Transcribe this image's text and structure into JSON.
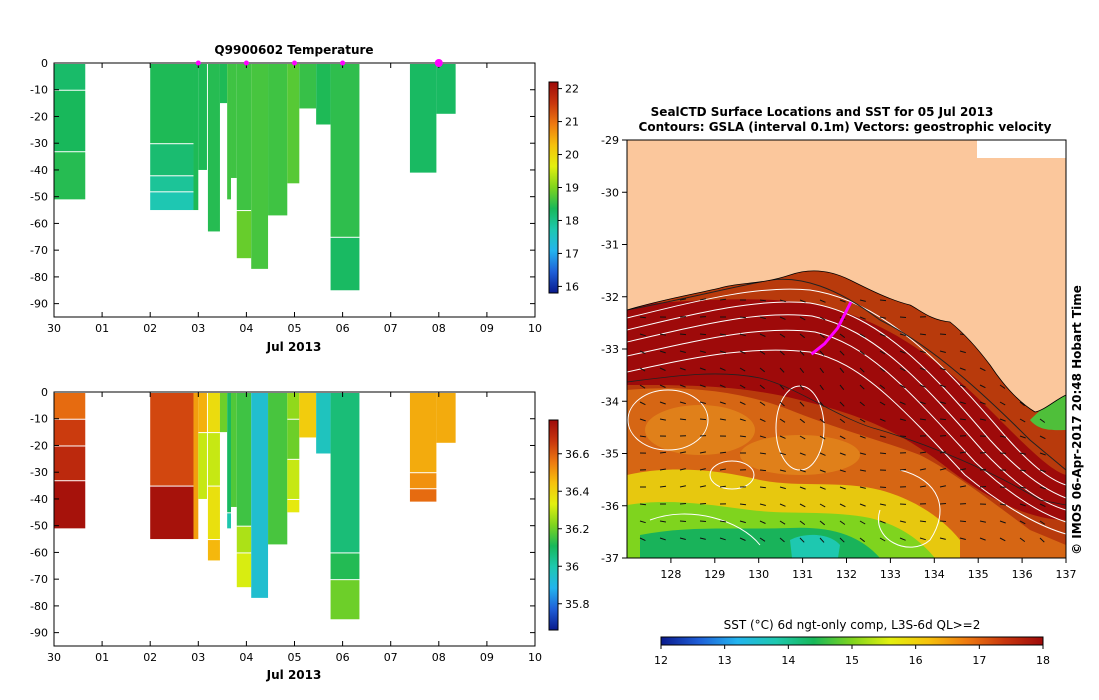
{
  "colors": {
    "temp_scale": [
      "#0a1a8c",
      "#1f5fd8",
      "#23b4ee",
      "#1ec8b0",
      "#18b85a",
      "#7fd41e",
      "#e3f00f",
      "#f6c20c",
      "#ee7a10",
      "#c8360e",
      "#9e0a0a"
    ],
    "land": "#fbc79c",
    "contour": "#ffffff",
    "track": "#ff00ff"
  },
  "chart_data": [
    {
      "id": "temperature-profile",
      "type": "heatmap",
      "title": "Q9900602  Temperature",
      "xlabel": "Jul 2013",
      "x_ticks": [
        "30",
        "01",
        "02",
        "03",
        "04",
        "05",
        "06",
        "07",
        "08",
        "09",
        "10"
      ],
      "xlim": [
        0,
        10
      ],
      "ylim": [
        -95,
        0
      ],
      "y_ticks": [
        0,
        -10,
        -20,
        -30,
        -40,
        -50,
        -60,
        -70,
        -80,
        -90
      ],
      "colorbar": {
        "min": 15.8,
        "max": 22.2,
        "ticks": [
          16,
          17,
          18,
          19,
          20,
          21,
          22
        ]
      },
      "profile_markers": [
        3.0,
        4.0,
        5.0,
        6.0,
        8.0
      ],
      "columns": [
        {
          "x0": 0.0,
          "x1": 0.65,
          "depth": 51,
          "bands": [
            [
              0,
              10,
              18.25
            ],
            [
              10,
              33,
              18.35
            ],
            [
              33,
              51,
              18.45
            ]
          ]
        },
        {
          "x0": 2.0,
          "x1": 2.9,
          "depth": 55,
          "bands": [
            [
              0,
              30,
              18.4
            ],
            [
              30,
              42,
              18.2
            ],
            [
              42,
              48,
              17.9
            ],
            [
              48,
              55,
              17.7
            ]
          ]
        },
        {
          "x0": 2.9,
          "x1": 3.0,
          "depth": 55,
          "bands": [
            [
              0,
              55,
              18.4
            ]
          ]
        },
        {
          "x0": 3.0,
          "x1": 3.18,
          "depth": 40,
          "bands": [
            [
              0,
              40,
              18.4
            ]
          ]
        },
        {
          "x0": 3.2,
          "x1": 3.45,
          "depth": 63,
          "bands": [
            [
              0,
              63,
              18.45
            ]
          ]
        },
        {
          "x0": 3.45,
          "x1": 3.6,
          "depth": 15,
          "bands": [
            [
              0,
              15,
              18.4
            ]
          ]
        },
        {
          "x0": 3.6,
          "x1": 3.68,
          "depth": 51,
          "bands": [
            [
              0,
              51,
              18.6
            ]
          ]
        },
        {
          "x0": 3.68,
          "x1": 3.8,
          "depth": 43,
          "bands": [
            [
              0,
              43,
              18.6
            ]
          ]
        },
        {
          "x0": 3.8,
          "x1": 4.1,
          "depth": 73,
          "bands": [
            [
              0,
              55,
              18.6
            ],
            [
              55,
              73,
              18.85
            ]
          ]
        },
        {
          "x0": 4.1,
          "x1": 4.45,
          "depth": 77,
          "bands": [
            [
              0,
              77,
              18.65
            ]
          ]
        },
        {
          "x0": 4.45,
          "x1": 4.85,
          "depth": 57,
          "bands": [
            [
              0,
              57,
              18.6
            ]
          ]
        },
        {
          "x0": 4.85,
          "x1": 5.1,
          "depth": 45,
          "bands": [
            [
              0,
              45,
              18.75
            ]
          ]
        },
        {
          "x0": 5.1,
          "x1": 5.45,
          "depth": 17,
          "bands": [
            [
              0,
              17,
              18.55
            ]
          ]
        },
        {
          "x0": 5.45,
          "x1": 5.75,
          "depth": 23,
          "bands": [
            [
              0,
              23,
              18.4
            ]
          ]
        },
        {
          "x0": 5.75,
          "x1": 6.35,
          "depth": 85,
          "bands": [
            [
              0,
              65,
              18.5
            ],
            [
              65,
              85,
              18.3
            ]
          ]
        },
        {
          "x0": 7.4,
          "x1": 7.95,
          "depth": 41,
          "bands": [
            [
              0,
              41,
              18.3
            ]
          ]
        },
        {
          "x0": 7.95,
          "x1": 8.35,
          "depth": 19,
          "bands": [
            [
              0,
              19,
              18.3
            ]
          ]
        }
      ]
    },
    {
      "id": "salinity-profile",
      "type": "heatmap",
      "title": "",
      "xlabel": "Jul 2013",
      "x_ticks": [
        "30",
        "01",
        "02",
        "03",
        "04",
        "05",
        "06",
        "07",
        "08",
        "09",
        "10"
      ],
      "xlim": [
        0,
        10
      ],
      "ylim": [
        -95,
        0
      ],
      "y_ticks": [
        0,
        -10,
        -20,
        -30,
        -40,
        -50,
        -60,
        -70,
        -80,
        -90
      ],
      "colorbar": {
        "min": 35.66,
        "max": 36.78,
        "ticks": [
          35.8,
          36,
          36.2,
          36.4,
          36.6
        ]
      },
      "columns": [
        {
          "x0": 0.0,
          "x1": 0.65,
          "depth": 51,
          "bands": [
            [
              0,
              10,
              36.58
            ],
            [
              10,
              20,
              36.66
            ],
            [
              20,
              33,
              36.7
            ],
            [
              33,
              51,
              36.76
            ]
          ]
        },
        {
          "x0": 2.0,
          "x1": 2.9,
          "depth": 55,
          "bands": [
            [
              0,
              35,
              36.64
            ],
            [
              35,
              55,
              36.76
            ]
          ]
        },
        {
          "x0": 2.9,
          "x1": 3.0,
          "depth": 55,
          "bands": [
            [
              0,
              55,
              36.5
            ]
          ]
        },
        {
          "x0": 3.0,
          "x1": 3.18,
          "depth": 40,
          "bands": [
            [
              0,
              15,
              36.47
            ],
            [
              15,
              40,
              36.3
            ]
          ]
        },
        {
          "x0": 3.2,
          "x1": 3.45,
          "depth": 63,
          "bands": [
            [
              0,
              15,
              36.38
            ],
            [
              15,
              35,
              36.3
            ],
            [
              35,
              55,
              36.37
            ],
            [
              55,
              63,
              36.46
            ]
          ]
        },
        {
          "x0": 3.45,
          "x1": 3.6,
          "depth": 15,
          "bands": [
            [
              0,
              15,
              36.2
            ]
          ]
        },
        {
          "x0": 3.6,
          "x1": 3.68,
          "depth": 51,
          "bands": [
            [
              0,
              45,
              36.1
            ],
            [
              45,
              51,
              36.0
            ]
          ]
        },
        {
          "x0": 3.68,
          "x1": 3.8,
          "depth": 43,
          "bands": [
            [
              0,
              43,
              36.17
            ]
          ]
        },
        {
          "x0": 3.8,
          "x1": 4.1,
          "depth": 73,
          "bands": [
            [
              0,
              50,
              36.15
            ],
            [
              50,
              60,
              36.27
            ],
            [
              60,
              73,
              36.32
            ]
          ]
        },
        {
          "x0": 4.1,
          "x1": 4.45,
          "depth": 77,
          "bands": [
            [
              0,
              77,
              35.94
            ]
          ]
        },
        {
          "x0": 4.45,
          "x1": 4.85,
          "depth": 57,
          "bands": [
            [
              0,
              57,
              36.16
            ]
          ]
        },
        {
          "x0": 4.85,
          "x1": 5.1,
          "depth": 45,
          "bands": [
            [
              0,
              10,
              36.24
            ],
            [
              10,
              25,
              36.2
            ],
            [
              25,
              40,
              36.3
            ],
            [
              40,
              45,
              36.35
            ]
          ]
        },
        {
          "x0": 5.1,
          "x1": 5.45,
          "depth": 17,
          "bands": [
            [
              0,
              17,
              36.42
            ]
          ]
        },
        {
          "x0": 5.45,
          "x1": 5.75,
          "depth": 23,
          "bands": [
            [
              0,
              23,
              35.97
            ]
          ]
        },
        {
          "x0": 5.75,
          "x1": 6.35,
          "depth": 85,
          "bands": [
            [
              0,
              60,
              36.07
            ],
            [
              60,
              70,
              36.12
            ],
            [
              70,
              85,
              36.2
            ]
          ]
        },
        {
          "x0": 7.4,
          "x1": 7.95,
          "depth": 41,
          "bands": [
            [
              0,
              30,
              36.48
            ],
            [
              30,
              36,
              36.52
            ],
            [
              36,
              41,
              36.58
            ]
          ]
        },
        {
          "x0": 7.95,
          "x1": 8.35,
          "depth": 19,
          "bands": [
            [
              0,
              19,
              36.48
            ]
          ]
        }
      ]
    },
    {
      "id": "sst-map",
      "type": "heatmap",
      "title": "SealCTD Surface Locations and SST for 05 Jul 2013",
      "subtitle": "Contours: GSLA (interval 0.1m) Vectors: geostrophic velocity",
      "xlabel": "",
      "ylabel": "",
      "x_ticks": [
        128,
        129,
        130,
        131,
        132,
        133,
        134,
        135,
        136,
        137
      ],
      "y_ticks": [
        -29,
        -30,
        -31,
        -32,
        -33,
        -34,
        -35,
        -36,
        -37
      ],
      "xlim": [
        127.0,
        137.0
      ],
      "ylim": [
        -37.0,
        -29.0
      ],
      "colorbar": {
        "label": "SST (°C) 6d ngt-only comp, L3S-6d QL>=2",
        "min": 12,
        "max": 18,
        "ticks": [
          12,
          13,
          14,
          15,
          16,
          17,
          18
        ]
      },
      "track": [
        [
          131.2,
          -33.1
        ],
        [
          131.5,
          -32.9
        ],
        [
          131.8,
          -32.6
        ],
        [
          132.1,
          -32.1
        ]
      ],
      "credit": "© IMOS 06-Apr-2017 20:48 Hobart Time"
    }
  ]
}
